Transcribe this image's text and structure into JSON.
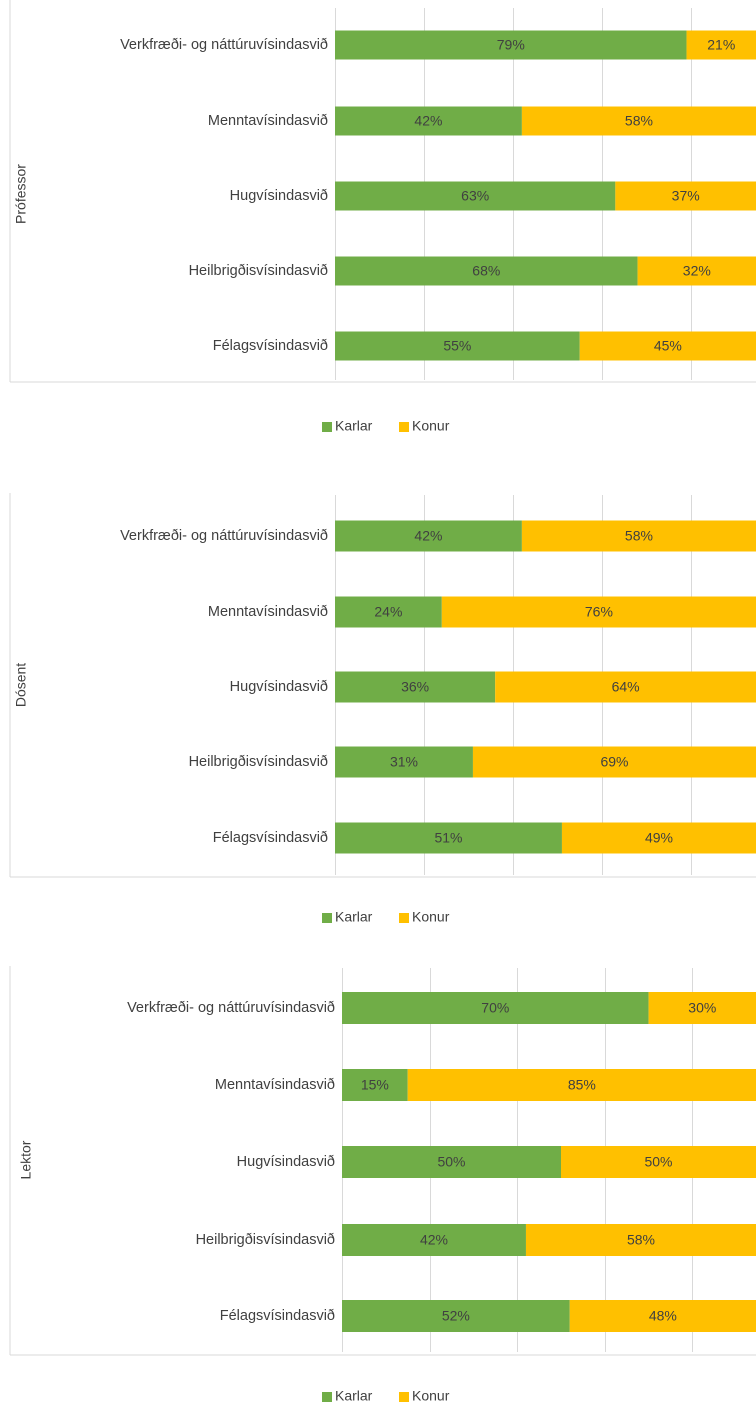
{
  "colors": {
    "karlar": "#70AD47",
    "konur": "#FFC000",
    "grid": "#D9D9D9",
    "text": "#404040"
  },
  "chart_data": [
    {
      "type": "bar",
      "orientation": "horizontal",
      "stacked": "percent",
      "group_label": "Prófessor",
      "categories": [
        "Verkfræði- og náttúruvísindasvið",
        "Menntavísindasvið",
        "Hugvísindasvið",
        "Heilbrigðisvísindasvið",
        "Félagsvísindasvið"
      ],
      "series": [
        {
          "name": "Karlar",
          "values": [
            79,
            42,
            63,
            68,
            55
          ]
        },
        {
          "name": "Konur",
          "values": [
            21,
            58,
            37,
            32,
            45
          ]
        }
      ],
      "xlim": [
        0,
        100
      ],
      "grid": true,
      "legend": "bottom"
    },
    {
      "type": "bar",
      "orientation": "horizontal",
      "stacked": "percent",
      "group_label": "Dósent",
      "categories": [
        "Verkfræði- og náttúruvísindasvið",
        "Menntavísindasvið",
        "Hugvísindasvið",
        "Heilbrigðisvísindasvið",
        "Félagsvísindasvið"
      ],
      "series": [
        {
          "name": "Karlar",
          "values": [
            42,
            24,
            36,
            31,
            51
          ]
        },
        {
          "name": "Konur",
          "values": [
            58,
            76,
            64,
            69,
            49
          ]
        }
      ],
      "xlim": [
        0,
        100
      ],
      "grid": true,
      "legend": "bottom"
    },
    {
      "type": "bar",
      "orientation": "horizontal",
      "stacked": "percent",
      "group_label": "Lektor",
      "categories": [
        "Verkfræði- og náttúruvísindasvið",
        "Menntavísindasvið",
        "Hugvísindasvið",
        "Heilbrigðisvísindasvið",
        "Félagsvísindasvið"
      ],
      "series": [
        {
          "name": "Karlar",
          "values": [
            70,
            15,
            50,
            42,
            52
          ]
        },
        {
          "name": "Konur",
          "values": [
            30,
            85,
            50,
            58,
            48
          ]
        }
      ],
      "xlim": [
        0,
        100
      ],
      "grid": true,
      "legend": "bottom"
    }
  ]
}
